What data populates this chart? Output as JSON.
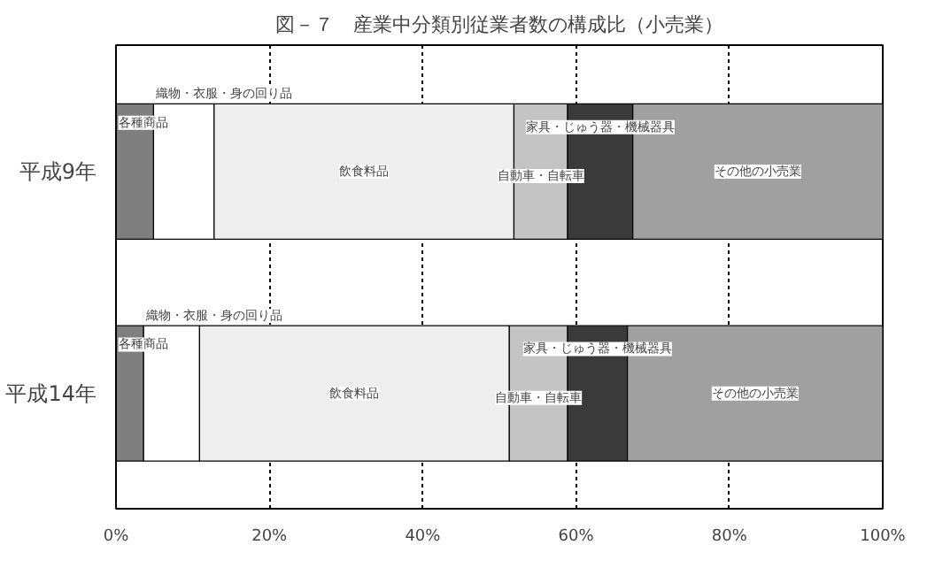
{
  "chart_data": {
    "type": "bar",
    "orientation": "horizontal",
    "stacked": true,
    "title": "図－７　産業中分類別従業者数の構成比（小売業）",
    "categories": [
      "平成9年",
      "平成14年"
    ],
    "series": [
      {
        "name": "各種商品",
        "color": "#7f7f7f",
        "values": [
          4.9,
          3.6
        ]
      },
      {
        "name": "織物・衣服・身の回り品",
        "color": "#ffffff",
        "values": [
          7.9,
          7.3
        ]
      },
      {
        "name": "飲食料品",
        "color": "#eeeeee",
        "values": [
          39.1,
          40.4
        ]
      },
      {
        "name": "自動車・自転車",
        "color": "#c4c4c4",
        "values": [
          7.0,
          7.6
        ]
      },
      {
        "name": "家具・じゅう器・機械器具",
        "color": "#3a3a3a",
        "values": [
          8.5,
          7.8
        ]
      },
      {
        "name": "その他の小売業",
        "color": "#a0a0a0",
        "values": [
          32.6,
          33.3
        ]
      }
    ],
    "xlim": [
      0,
      100
    ],
    "xticks": [
      {
        "value": 0,
        "label": "0%"
      },
      {
        "value": 20,
        "label": "20%"
      },
      {
        "value": 40,
        "label": "40%"
      },
      {
        "value": 60,
        "label": "60%"
      },
      {
        "value": 80,
        "label": "80%"
      },
      {
        "value": 100,
        "label": "100%"
      }
    ],
    "grid": "x"
  }
}
